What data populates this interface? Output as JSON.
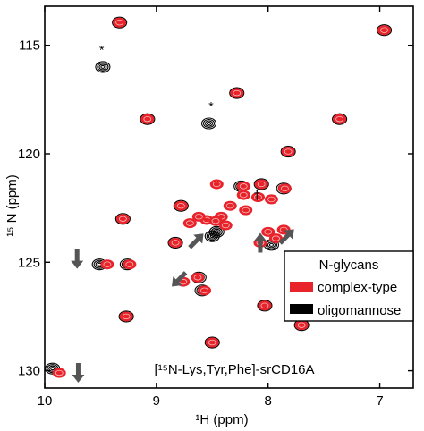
{
  "chart_data": {
    "type": "scatter",
    "title": "",
    "xlabel": "¹H (ppm)",
    "ylabel": "¹⁵ N (ppm)",
    "xlim": [
      10.0,
      6.7
    ],
    "ylim": [
      113.2,
      130.8
    ],
    "x_reversed": true,
    "xticks": [
      10,
      9,
      8,
      7
    ],
    "yticks": [
      115,
      120,
      125,
      130
    ],
    "sample_label": "[¹⁵N-Lys,Tyr,Phe]-srCD16A",
    "legend": {
      "title": "N-glycans",
      "placement": "bottom-right",
      "entries": [
        {
          "label": "complex-type",
          "color": "#e8232a"
        },
        {
          "label": "oligomannose",
          "color": "#000000"
        }
      ]
    },
    "series": [
      {
        "name": "complex-type",
        "color": "#e8232a",
        "points": [
          {
            "x": 9.33,
            "y": 113.95
          },
          {
            "x": 6.96,
            "y": 114.3
          },
          {
            "x": 8.28,
            "y": 117.2
          },
          {
            "x": 9.08,
            "y": 118.4
          },
          {
            "x": 7.36,
            "y": 118.4
          },
          {
            "x": 7.82,
            "y": 119.9
          },
          {
            "x": 8.22,
            "y": 121.5
          },
          {
            "x": 8.06,
            "y": 121.4
          },
          {
            "x": 7.85,
            "y": 121.6
          },
          {
            "x": 8.22,
            "y": 121.9
          },
          {
            "x": 8.09,
            "y": 122.0
          },
          {
            "x": 7.97,
            "y": 122.1
          },
          {
            "x": 8.46,
            "y": 121.4
          },
          {
            "x": 8.78,
            "y": 122.4
          },
          {
            "x": 8.34,
            "y": 122.4
          },
          {
            "x": 8.2,
            "y": 122.6
          },
          {
            "x": 8.42,
            "y": 122.9
          },
          {
            "x": 8.55,
            "y": 123.05
          },
          {
            "x": 8.62,
            "y": 122.9
          },
          {
            "x": 8.7,
            "y": 123.2
          },
          {
            "x": 8.47,
            "y": 123.1
          },
          {
            "x": 8.38,
            "y": 123.3
          },
          {
            "x": 9.3,
            "y": 123.0
          },
          {
            "x": 8.0,
            "y": 123.6
          },
          {
            "x": 7.86,
            "y": 123.5
          },
          {
            "x": 7.93,
            "y": 123.9
          },
          {
            "x": 8.07,
            "y": 124.1
          },
          {
            "x": 8.83,
            "y": 124.1
          },
          {
            "x": 9.44,
            "y": 125.1
          },
          {
            "x": 9.24,
            "y": 125.1
          },
          {
            "x": 8.63,
            "y": 125.7
          },
          {
            "x": 8.57,
            "y": 126.3
          },
          {
            "x": 8.76,
            "y": 125.9
          },
          {
            "x": 8.03,
            "y": 127.0
          },
          {
            "x": 9.27,
            "y": 127.5
          },
          {
            "x": 7.7,
            "y": 127.9
          },
          {
            "x": 8.5,
            "y": 128.7
          },
          {
            "x": 9.87,
            "y": 130.1
          }
        ]
      },
      {
        "name": "oligomannose",
        "color": "#000000",
        "points": [
          {
            "x": 9.33,
            "y": 113.95
          },
          {
            "x": 6.96,
            "y": 114.3
          },
          {
            "x": 8.28,
            "y": 117.2
          },
          {
            "x": 9.08,
            "y": 118.4
          },
          {
            "x": 7.36,
            "y": 118.4
          },
          {
            "x": 7.82,
            "y": 119.9
          },
          {
            "x": 8.06,
            "y": 121.4
          },
          {
            "x": 8.24,
            "y": 121.5
          },
          {
            "x": 7.86,
            "y": 121.6
          },
          {
            "x": 8.78,
            "y": 122.4
          },
          {
            "x": 9.3,
            "y": 123.0
          },
          {
            "x": 8.46,
            "y": 123.6
          },
          {
            "x": 8.5,
            "y": 123.8
          },
          {
            "x": 7.97,
            "y": 124.2
          },
          {
            "x": 8.83,
            "y": 124.1
          },
          {
            "x": 9.51,
            "y": 125.1
          },
          {
            "x": 9.26,
            "y": 125.1
          },
          {
            "x": 8.62,
            "y": 125.7
          },
          {
            "x": 8.59,
            "y": 126.3
          },
          {
            "x": 8.03,
            "y": 127.0
          },
          {
            "x": 9.27,
            "y": 127.5
          },
          {
            "x": 7.7,
            "y": 127.9
          },
          {
            "x": 8.5,
            "y": 128.7
          },
          {
            "x": 9.93,
            "y": 129.9
          },
          {
            "x": 9.48,
            "y": 116.0
          },
          {
            "x": 8.53,
            "y": 118.6
          }
        ]
      }
    ],
    "annotations": [
      {
        "text": "*",
        "x": 9.49,
        "y": 115.4
      },
      {
        "text": "*",
        "x": 8.51,
        "y": 118.0
      },
      {
        "text": "†",
        "x": 8.1,
        "y": 122.1
      }
    ],
    "arrows": [
      {
        "x": 9.71,
        "y": 124.85,
        "dir": "down"
      },
      {
        "x": 8.8,
        "y": 125.8,
        "dir": "down-left"
      },
      {
        "x": 8.64,
        "y": 124.0,
        "dir": "up-right"
      },
      {
        "x": 8.07,
        "y": 124.1,
        "dir": "up"
      },
      {
        "x": 7.83,
        "y": 123.8,
        "dir": "up-right"
      },
      {
        "x": 9.7,
        "y": 130.1,
        "dir": "down"
      }
    ]
  }
}
